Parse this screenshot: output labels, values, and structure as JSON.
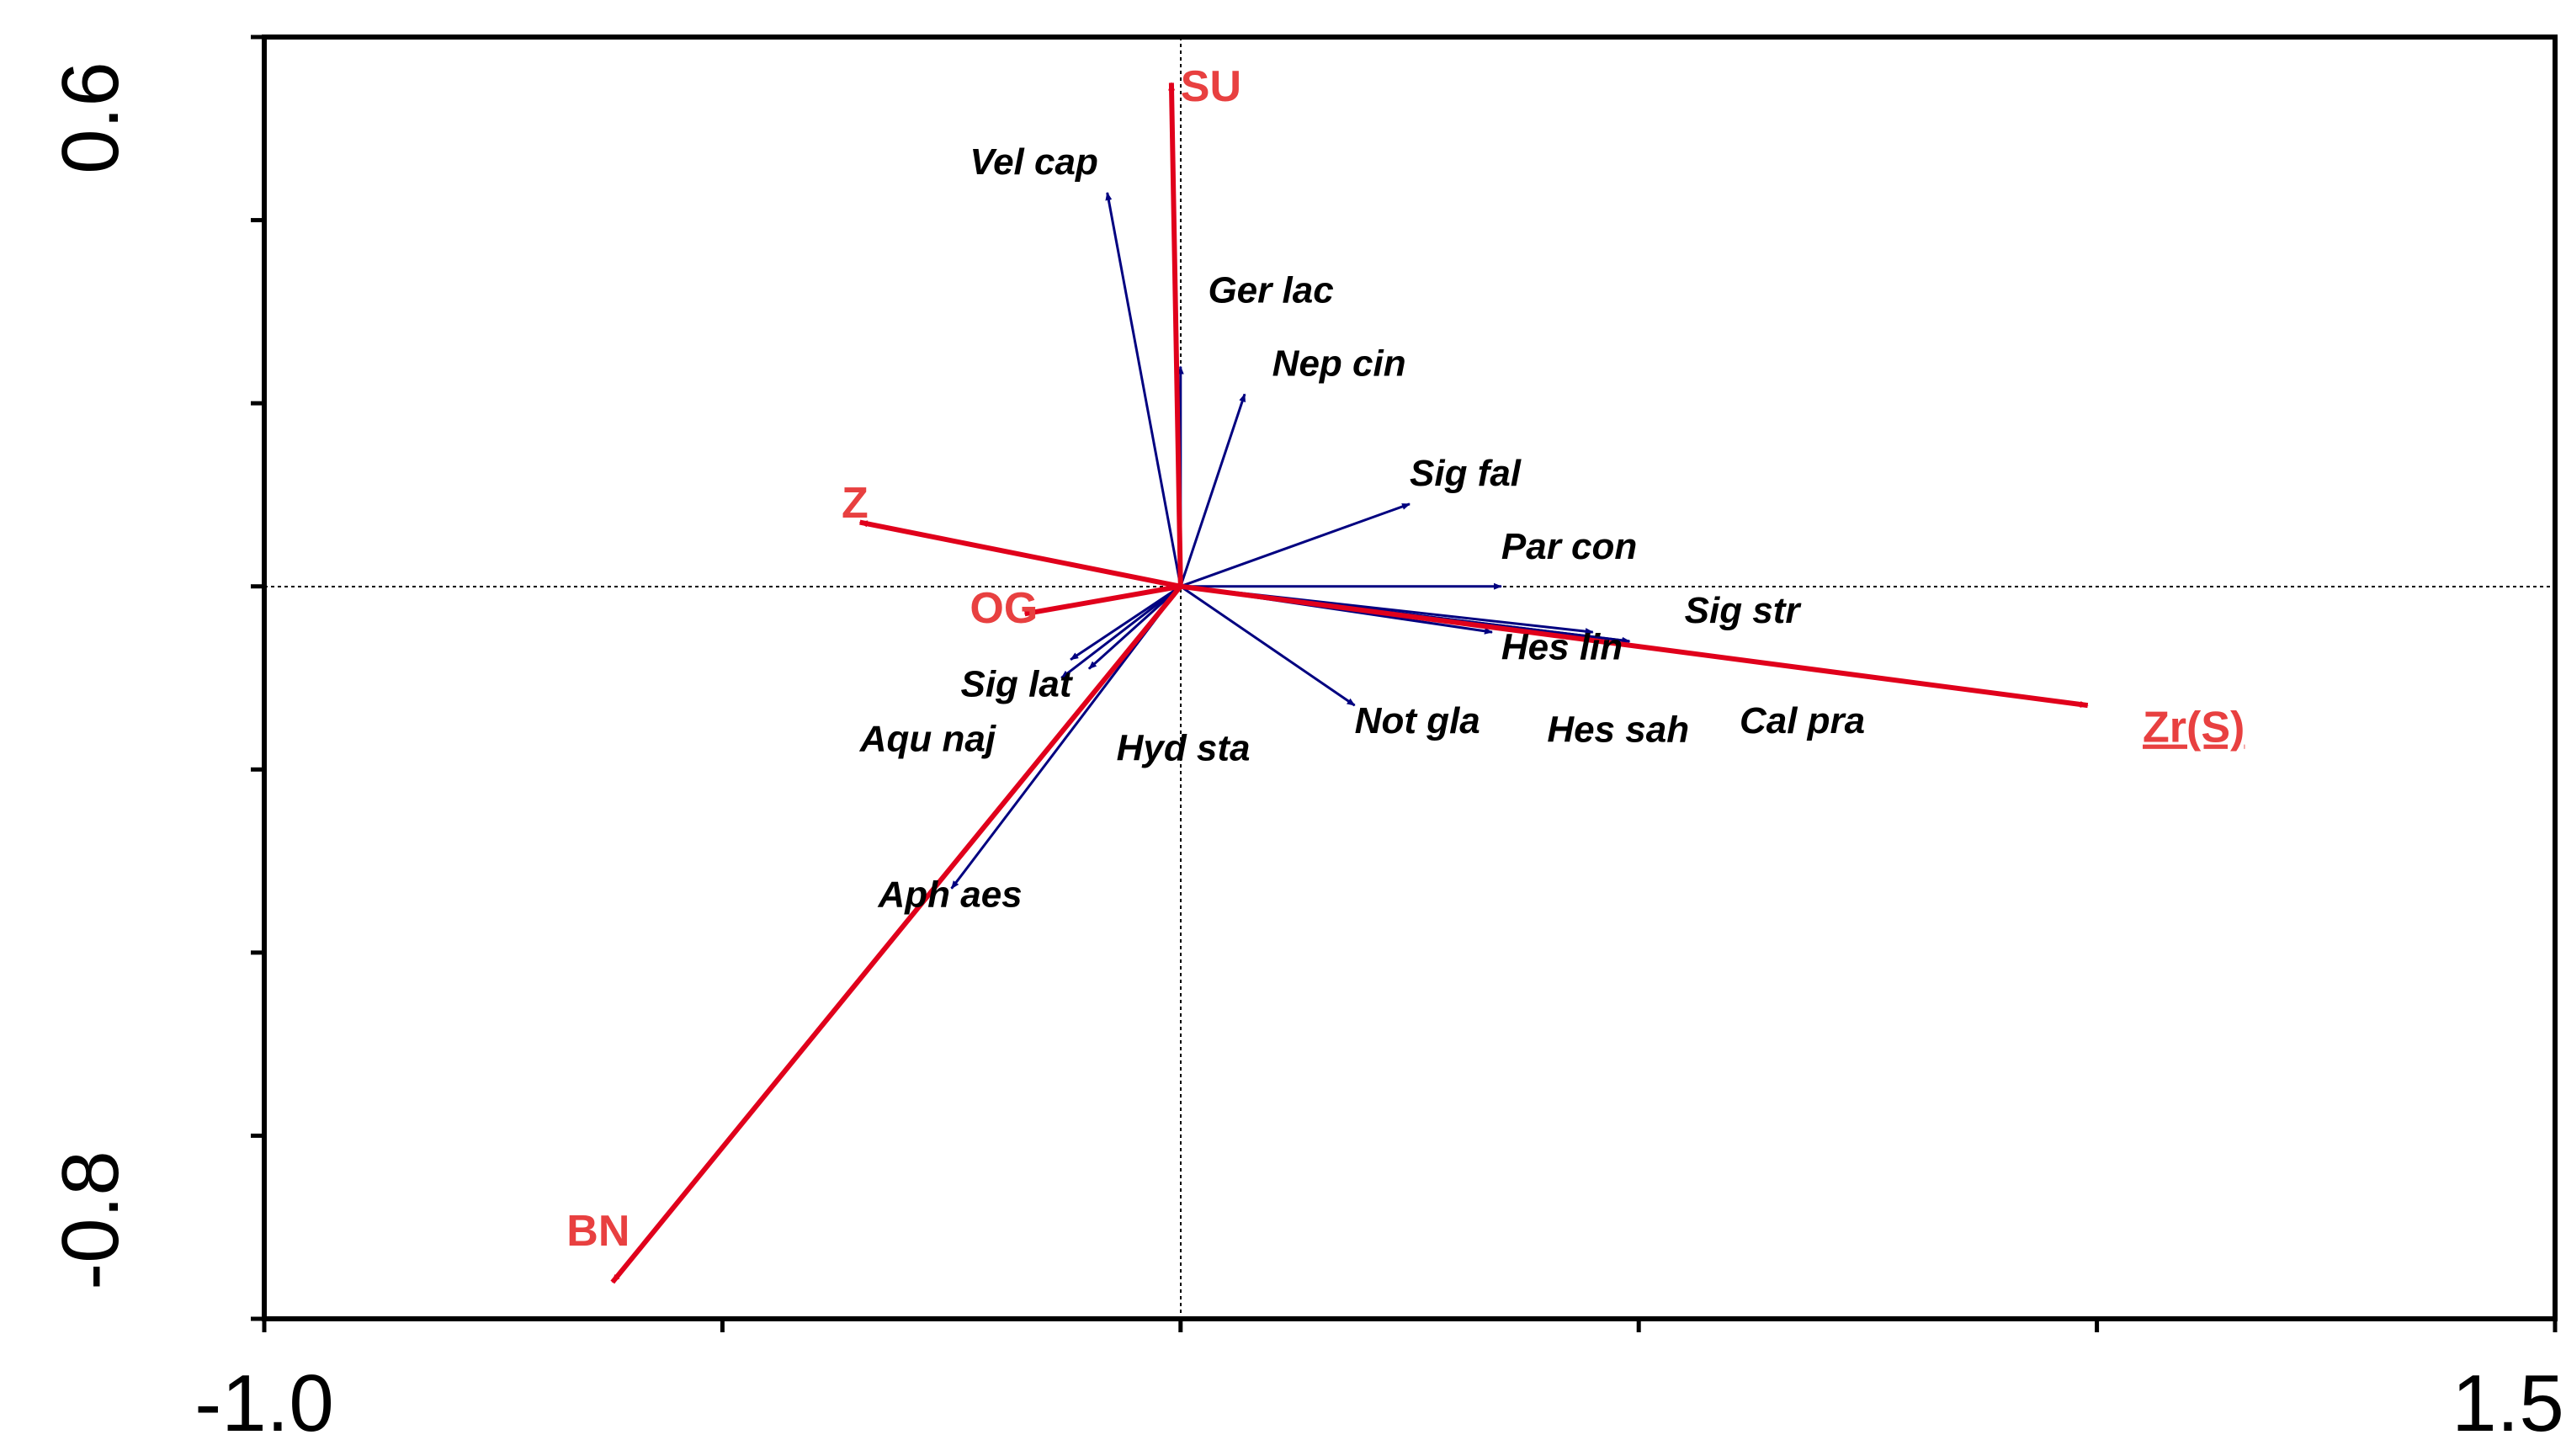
{
  "chart_data": {
    "type": "scatter",
    "subtype": "biplot",
    "title": "",
    "xlabel": "",
    "ylabel": "",
    "xlim": [
      -1.0,
      1.5
    ],
    "ylim": [
      -0.8,
      0.6
    ],
    "x_tick_labels": [
      "-1.0",
      "1.5"
    ],
    "y_tick_labels": [
      "0.6",
      "-0.8"
    ],
    "x_minor_ticks": [
      -1.0,
      -0.5,
      0.0,
      0.5,
      1.0,
      1.5
    ],
    "y_minor_ticks": [
      -0.8,
      -0.6,
      -0.4,
      -0.2,
      0.0,
      0.2,
      0.4,
      0.6
    ],
    "reference_lines": {
      "x": 0.0,
      "y": 0.0,
      "style": "dotted"
    },
    "grid": false,
    "colors": {
      "environment": "#e0001b",
      "species": "#000080",
      "env_label": "#e84040",
      "axis": "#000000"
    },
    "series": [
      {
        "kind": "environmental",
        "vectors": [
          {
            "label": "SU",
            "x": -0.01,
            "y": 0.55
          },
          {
            "label": "Z",
            "x": -0.35,
            "y": 0.07
          },
          {
            "label": "OG",
            "x": -0.17,
            "y": -0.03
          },
          {
            "label": "BN",
            "x": -0.62,
            "y": -0.76
          },
          {
            "label": "Zr(S)",
            "x": 0.99,
            "y": -0.13,
            "underline": true
          }
        ]
      },
      {
        "kind": "species",
        "vectors": [
          {
            "label": "Vel cap",
            "x": -0.08,
            "y": 0.43
          },
          {
            "label": "Ger lac",
            "x": 0.0,
            "y": 0.24
          },
          {
            "label": "Nep cin",
            "x": 0.07,
            "y": 0.21
          },
          {
            "label": "Sig fal",
            "x": 0.25,
            "y": 0.09
          },
          {
            "label": "Par con",
            "x": 0.35,
            "y": 0.0
          },
          {
            "label": "Hes lin",
            "x": 0.45,
            "y": -0.05
          },
          {
            "label": "Sig str",
            "x": 0.49,
            "y": -0.06
          },
          {
            "label": "Not gla",
            "x": 0.19,
            "y": -0.13
          },
          {
            "label": "Sig lat",
            "x": -0.13,
            "y": -0.1
          },
          {
            "label": "Hyd sta",
            "x": -0.1,
            "y": -0.09
          },
          {
            "label": "Aqu naj",
            "x": -0.12,
            "y": -0.08
          },
          {
            "label": "Aph aes",
            "x": -0.25,
            "y": -0.33
          },
          {
            "label": "Hes sah",
            "x": 0.34,
            "y": -0.05
          },
          {
            "label": "Cal pra",
            "x": 0.49,
            "y": -0.06
          }
        ]
      }
    ],
    "label_placement": {
      "SU": [
        0.0,
        0.53
      ],
      "Z": [
        -0.37,
        0.075
      ],
      "OG": [
        -0.23,
        -0.04
      ],
      "BN": [
        -0.67,
        -0.72
      ],
      "Zr(S)": [
        1.05,
        -0.17
      ],
      "Vel cap": [
        -0.23,
        0.45
      ],
      "Ger lac": [
        0.03,
        0.31
      ],
      "Nep cin": [
        0.1,
        0.23
      ],
      "Sig fal": [
        0.25,
        0.11
      ],
      "Par con": [
        0.35,
        0.03
      ],
      "Hes lin": [
        0.35,
        -0.08
      ],
      "Sig str": [
        0.55,
        -0.04
      ],
      "Not gla": [
        0.19,
        -0.16
      ],
      "Sig lat": [
        -0.24,
        -0.12
      ],
      "Hyd sta": [
        -0.07,
        -0.19
      ],
      "Aqu naj": [
        -0.35,
        -0.18
      ],
      "Aph aes": [
        -0.33,
        -0.35
      ],
      "Hes sah": [
        0.4,
        -0.17
      ],
      "Cal pra": [
        0.61,
        -0.16
      ]
    }
  }
}
